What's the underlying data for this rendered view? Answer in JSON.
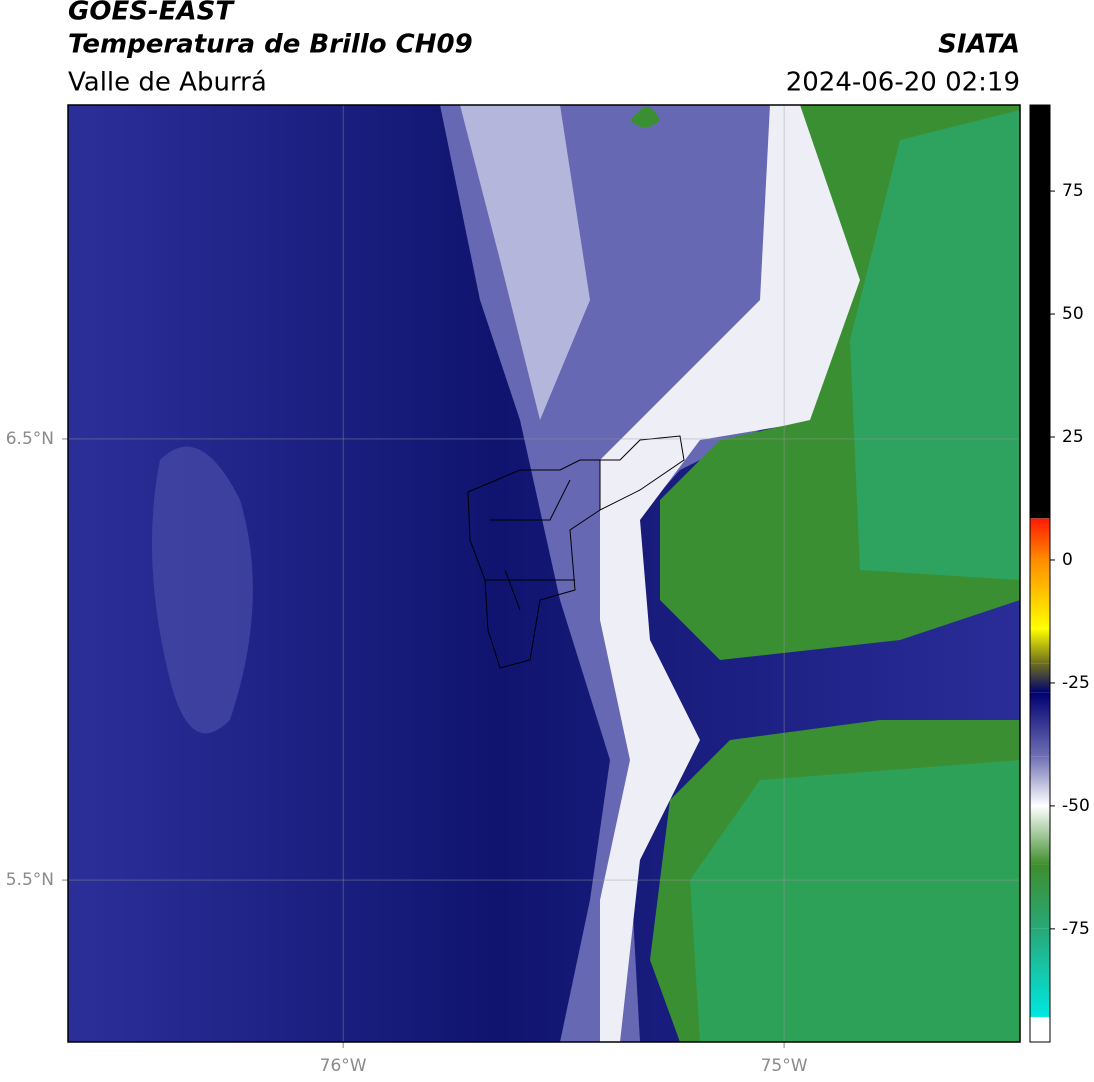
{
  "header": {
    "title": "GOES-EAST",
    "subtitle": "Temperatura de Brillo CH09",
    "region": "Valle de Aburrá",
    "source": "SIATA",
    "datetime": "2024-06-20 02:19"
  },
  "map": {
    "xlim": [
      -76.624,
      -74.465
    ],
    "ylim": [
      5.133,
      7.257
    ],
    "xticks": [
      {
        "value": -76,
        "label": "76°W"
      },
      {
        "value": -75,
        "label": "75°W"
      }
    ],
    "yticks": [
      {
        "value": 6.5,
        "label": "6.5°N"
      },
      {
        "value": 5.5,
        "label": "5.5°N"
      }
    ],
    "grid": true
  },
  "colorbar": {
    "lim": [
      -98,
      92.5
    ],
    "ticks": [
      75,
      50,
      25,
      0,
      -25,
      -50,
      -75
    ],
    "stops": [
      {
        "value": 92.5,
        "color": "#000000"
      },
      {
        "value": 8.5,
        "color": "#000000"
      },
      {
        "value": 8.4,
        "color": "#ff1a00"
      },
      {
        "value": 0,
        "color": "#ff8c00"
      },
      {
        "value": -14,
        "color": "#ffff00"
      },
      {
        "value": -21,
        "color": "#6e6e1e"
      },
      {
        "value": -27,
        "color": "#000070"
      },
      {
        "value": -40,
        "color": "#6f70b5"
      },
      {
        "value": -50,
        "color": "#ffffff"
      },
      {
        "value": -62,
        "color": "#3e8e2e"
      },
      {
        "value": -75,
        "color": "#28a878"
      },
      {
        "value": -92.9,
        "color": "#00e8e0"
      },
      {
        "value": -93,
        "color": "#ffffff"
      },
      {
        "value": -98,
        "color": "#ffffff"
      }
    ]
  }
}
